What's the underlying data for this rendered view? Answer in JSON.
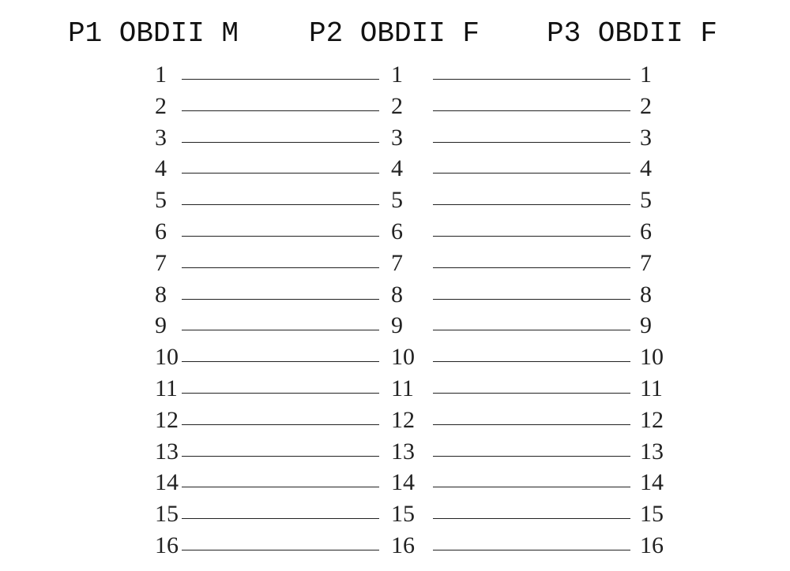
{
  "headers": [
    "P1 OBDII M",
    "P2 OBDII F",
    "P3 OBDII F"
  ],
  "pins": [
    "1",
    "2",
    "3",
    "4",
    "5",
    "6",
    "7",
    "8",
    "9",
    "10",
    "11",
    "12",
    "13",
    "14",
    "15",
    "16"
  ],
  "connections": "P1 pin n — P2 pin n — P3 pin n (straight-through)"
}
